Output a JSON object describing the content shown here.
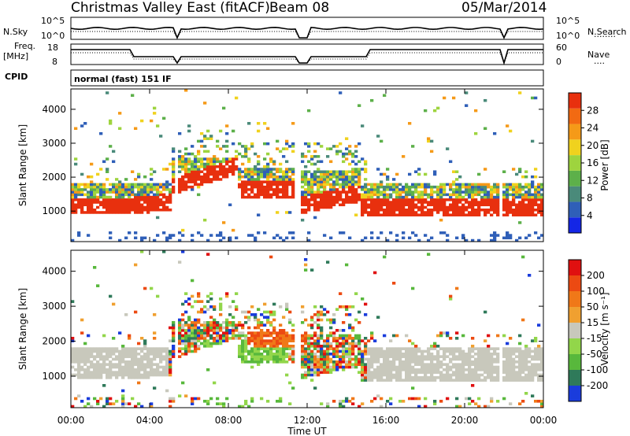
{
  "header": {
    "station": "Christmas Valley East (fitACF)",
    "beam": "Beam 08",
    "date": "05/Mar/2014"
  },
  "status_panel": {
    "nsky_label": "N.Sky",
    "nsearch_label": "N.Search",
    "freq_label_1": "Freq.",
    "freq_label_2": "[MHz]",
    "nave_label": "Nave",
    "cpid_label": "CPID",
    "cpid_value": "normal (fast) 151 IF",
    "left_ticks_top": [
      "10^5",
      "10^0"
    ],
    "right_ticks_top": [
      "10^5",
      "10^0"
    ],
    "left_ticks_freq": [
      "18",
      "8"
    ],
    "right_ticks_nave": [
      "60",
      "0"
    ]
  },
  "chart_data": [
    {
      "type": "heatmap",
      "title": "",
      "xlabel": "",
      "ylabel": "Slant Range [km]",
      "xlim": [
        0,
        24
      ],
      "ylim": [
        100,
        4600
      ],
      "y_ticks": [
        "1000",
        "2000",
        "3000",
        "4000"
      ],
      "colorbar": {
        "label": "Power [dB]",
        "ticks": [
          "4",
          "8",
          "12",
          "16",
          "20",
          "24",
          "28"
        ],
        "colors": [
          "#1426e6",
          "#2f5fb8",
          "#4a8a7a",
          "#5db04a",
          "#9ed43e",
          "#f0d21e",
          "#f59a18",
          "#f26a12",
          "#e8300e"
        ]
      }
    },
    {
      "type": "heatmap",
      "title": "",
      "xlabel": "Time UT",
      "ylabel": "Slant Range [km]",
      "xlim": [
        0,
        24
      ],
      "ylim": [
        100,
        4600
      ],
      "x_ticks": [
        "00:00",
        "04:00",
        "08:00",
        "12:00",
        "16:00",
        "20:00",
        "00:00"
      ],
      "y_ticks": [
        "1000",
        "2000",
        "3000",
        "4000"
      ],
      "colorbar": {
        "label": "Velocity [m s⁻¹]",
        "ticks": [
          "200",
          "100",
          "50",
          "15",
          "-15",
          "-50",
          "-100",
          "-200"
        ],
        "colors": [
          "#1a3cdc",
          "#2f7a5a",
          "#58b83c",
          "#92d64a",
          "#c8c8bc",
          "#f0a030",
          "#f07818",
          "#ec4a12",
          "#e01010"
        ]
      }
    }
  ]
}
